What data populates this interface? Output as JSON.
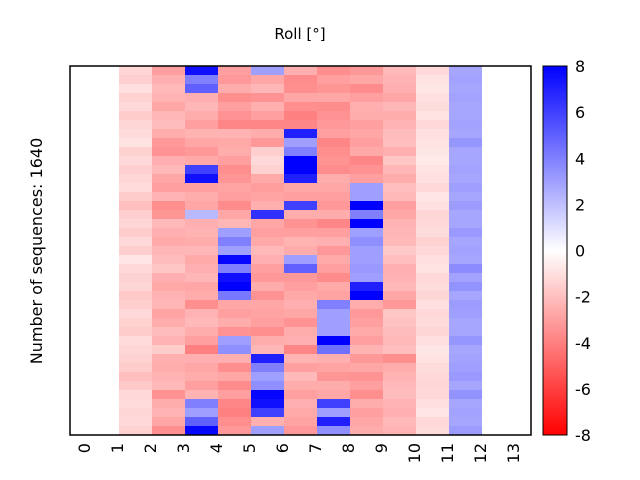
{
  "chart_data": {
    "type": "heatmap",
    "title": "Roll [°]",
    "xlabel": "",
    "ylabel": "Number of sequences: 1640",
    "n_sequences": 1640,
    "x_ticks": [
      "0",
      "1",
      "2",
      "3",
      "4",
      "5",
      "6",
      "7",
      "8",
      "9",
      "10",
      "11",
      "12",
      "13"
    ],
    "colorbar": {
      "range": [
        -8,
        8
      ],
      "ticks": [
        "8",
        "6",
        "4",
        "2",
        "0",
        "-2",
        "-4",
        "-6",
        "-8"
      ],
      "tick_values": [
        8,
        6,
        4,
        2,
        0,
        -2,
        -4,
        -6,
        -8
      ],
      "colormap": "red-white-blue",
      "low_color": "#ff0000",
      "mid_color": "#ffffff",
      "high_color": "#0000ff"
    },
    "band_size_sequences": 40,
    "columns": [
      {
        "index": 1,
        "values": [
          -1.3,
          -1.5,
          -1,
          -1.4,
          -1.2,
          -1.6,
          -1.3,
          -1.1,
          -0.9,
          -1.4,
          -1.2,
          -1.5,
          -1.3,
          -1.1,
          -1.6,
          -2,
          -1.5,
          -1.3,
          -1.6,
          -1.2,
          -1.5,
          -0.8,
          -1.2,
          -1.4,
          -1.3,
          -1.7,
          -1.5,
          -1.2,
          -1.4,
          -1.6,
          -1.1,
          -1.3,
          -1.4,
          -1.6,
          -2,
          -1.7,
          -1.2,
          -1.1,
          -1.3,
          -1.2,
          -1.4
        ]
      },
      {
        "index": 2,
        "values": [
          -3,
          -2.5,
          -2.2,
          -2.4,
          -2.8,
          -2.3,
          -2.1,
          -2.6,
          -3.2,
          -3.4,
          -2.5,
          -2.2,
          -2.8,
          -3,
          -2.4,
          -3.5,
          -3.3,
          -2.2,
          -2.5,
          -2.7,
          -2.3,
          -2.1,
          -1.8,
          -2.5,
          -2.7,
          -2.4,
          -2.3,
          -2.9,
          -2.6,
          -2.1,
          -2.4,
          -1.6,
          -2.5,
          -2.6,
          -2.4,
          -2.2,
          -3.4,
          -2.6,
          -2.4,
          -2.8,
          -3.5
        ]
      },
      {
        "index": 3,
        "values": [
          7.5,
          4,
          5,
          -2.5,
          -2.3,
          -2.6,
          -3,
          -2.4,
          -2.8,
          -3.2,
          -2.7,
          6,
          7.5,
          -3,
          -2.6,
          -2.8,
          2.2,
          -2.5,
          -2.4,
          -2.6,
          -2.3,
          -2.7,
          -2.5,
          -2.3,
          -2.8,
          -2.6,
          -3.5,
          -2.4,
          -2.2,
          -2.6,
          -3,
          -4,
          -2.5,
          -2.8,
          -2.6,
          -3,
          -2.4,
          4,
          3,
          5,
          7.8
        ]
      },
      {
        "index": 4,
        "values": [
          -3,
          -3.2,
          -2.6,
          -3.5,
          -3,
          -3.4,
          -3.8,
          -2.4,
          -2.7,
          -2.6,
          -3,
          -3.5,
          -3.3,
          -2.9,
          -3,
          -3.6,
          -2.8,
          -2.3,
          3,
          4,
          3,
          7.8,
          4,
          7.5,
          8,
          4.2,
          -2.8,
          -3,
          -2.6,
          -3.4,
          3,
          3.5,
          -2.5,
          -3.5,
          -2.8,
          -3.6,
          -3,
          -3.8,
          -4,
          -3.5,
          -3.2
        ]
      },
      {
        "index": 5,
        "values": [
          3,
          -2.8,
          -2.3,
          -3.4,
          -2.5,
          -3,
          -3.8,
          -2.6,
          -3.2,
          -1.5,
          -1.2,
          -1.4,
          -2.7,
          -3.1,
          -2.9,
          -2.5,
          6.5,
          -2.8,
          -3,
          -2.7,
          -2.2,
          -2.5,
          -3,
          -3.2,
          -2.6,
          -3.4,
          -2.8,
          -2.9,
          -3,
          -3.5,
          -2.6,
          -2.3,
          7,
          4,
          3,
          3.5,
          7.8,
          7.5,
          6,
          -2.5,
          3
        ]
      },
      {
        "index": 6,
        "values": [
          -2.5,
          -3.6,
          -3.5,
          -2.8,
          -3.5,
          -4,
          -3.8,
          7,
          3,
          4,
          8,
          8,
          7,
          -2.8,
          -3,
          6,
          -2.6,
          -3.4,
          -3,
          -2.4,
          -2.6,
          3,
          5,
          -3.2,
          -3,
          -2.7,
          -2.5,
          -2.8,
          -3.4,
          -2.6,
          -2.5,
          -3.8,
          -2.4,
          -3,
          -2.2,
          -2.6,
          -3,
          -2.5,
          -2.7,
          -2.9,
          -3.2
        ]
      },
      {
        "index": 7,
        "values": [
          -3.5,
          -3,
          -3.3,
          -2.8,
          -3.6,
          -3.4,
          -3.2,
          -3,
          -3.8,
          -3.5,
          -3.4,
          -3.6,
          -2.6,
          -2.8,
          -3,
          -3.2,
          -2.6,
          -3.8,
          -3,
          -2.5,
          -3.2,
          -2.7,
          -3,
          -3.6,
          -2.7,
          -2.9,
          4,
          3,
          3,
          3,
          8,
          4.5,
          -2.5,
          -2.9,
          -3.3,
          -2.6,
          -2.8,
          6,
          3,
          7,
          3.5
        ]
      },
      {
        "index": 8,
        "values": [
          -3.2,
          -2.8,
          -3.6,
          -3,
          -2.5,
          -2.6,
          -3,
          -2.8,
          -3,
          -2.7,
          -3.8,
          -3.4,
          -3,
          3,
          3,
          8,
          4,
          8,
          3,
          3.5,
          3,
          3,
          3.2,
          3,
          7,
          8,
          -2.6,
          -3.2,
          -3,
          -2.7,
          -3,
          -2.4,
          -3.2,
          -2.8,
          -3.4,
          -3,
          -3.5,
          -2.6,
          -3,
          -2.8,
          -2.6
        ]
      },
      {
        "index": 9,
        "values": [
          -2.2,
          -2.4,
          -2.5,
          -2.8,
          -2.3,
          -2.6,
          -2.4,
          -2.1,
          -2,
          -2.5,
          -1.8,
          -2.3,
          -2.6,
          -2,
          -2.2,
          -3,
          -2.8,
          -2.4,
          -2.3,
          -2.2,
          -1.7,
          -2,
          -2.5,
          -2.4,
          -2.2,
          -2.8,
          -3.2,
          -1.8,
          -1.9,
          -2.1,
          -2.2,
          -2,
          -3.5,
          -2.6,
          -2.4,
          -2.2,
          -2.1,
          -2.4,
          -2.5,
          -2.2,
          -2.4
        ]
      },
      {
        "index": 10,
        "values": [
          -1.2,
          -0.9,
          -0.8,
          -1,
          -1.1,
          -0.9,
          -1.2,
          -1,
          -0.9,
          -0.8,
          -0.7,
          -0.9,
          -1,
          -1.2,
          -0.8,
          -1,
          -1.3,
          -1.2,
          -1.1,
          -1.4,
          -1.2,
          -1,
          -0.9,
          -1.2,
          -1.1,
          -1.3,
          -1,
          -1.2,
          -1.1,
          -1.3,
          -1,
          -0.8,
          -0.9,
          -1.1,
          -1.2,
          -1.3,
          -1.2,
          -1,
          -0.8,
          -1.2,
          -1.1
        ]
      },
      {
        "index": 11,
        "values": [
          2.8,
          2.9,
          2.8,
          2.9,
          2.8,
          2.8,
          2.9,
          2.8,
          3.3,
          2.8,
          2.8,
          2.9,
          2.8,
          3,
          2.8,
          3.1,
          2.8,
          2.8,
          3.2,
          2.8,
          2.9,
          2.8,
          3.6,
          2.9,
          3.4,
          2.8,
          3.1,
          3,
          2.8,
          2.8,
          3.3,
          2.8,
          2.9,
          3,
          3.2,
          2.8,
          3.4,
          2.8,
          2.9,
          2.8,
          3.1
        ]
      }
    ]
  }
}
